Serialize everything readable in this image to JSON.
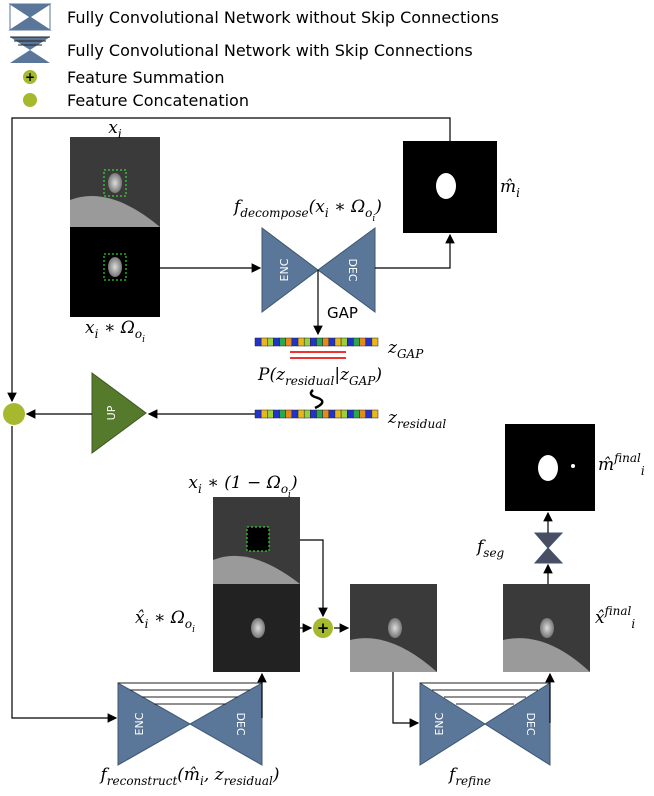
{
  "legend": [
    {
      "label": "Fully Convolutional Network without Skip Connections"
    },
    {
      "label": "Fully Convolutional Network with Skip Connections"
    },
    {
      "label": "Feature Summation",
      "symbol": "+"
    },
    {
      "label": "Feature Concatenation"
    }
  ],
  "blocks": {
    "enc": "ENC",
    "dec": "DEC",
    "up": "UP",
    "gap": "GAP"
  },
  "math_labels": [
    [
      {
        "text": "x"
      },
      {
        "text": "i",
        "script": "sub"
      }
    ],
    [
      {
        "text": "x"
      },
      {
        "text": "i",
        "script": "sub"
      },
      {
        "text": " ∗ Ω"
      },
      {
        "text": "o",
        "script": "sub"
      },
      {
        "text": "i",
        "script": "sub2"
      }
    ],
    [
      {
        "text": "f"
      },
      {
        "text": "decompose",
        "script": "sub"
      },
      {
        "text": "(x"
      },
      {
        "text": "i",
        "script": "sub"
      },
      {
        "text": " ∗ Ω"
      },
      {
        "text": "o",
        "script": "sub"
      },
      {
        "text": "i",
        "script": "sub2"
      },
      {
        "text": ")"
      }
    ],
    [
      {
        "text": "m̂"
      },
      {
        "text": "i",
        "script": "sub"
      }
    ],
    [
      {
        "text": "z"
      },
      {
        "text": "GAP",
        "script": "sub"
      }
    ],
    [
      {
        "text": "P(z"
      },
      {
        "text": "residual",
        "script": "sub"
      },
      {
        "text": "|z"
      },
      {
        "text": "GAP",
        "script": "sub"
      },
      {
        "text": ")"
      }
    ],
    [
      {
        "text": "z"
      },
      {
        "text": "residual",
        "script": "sub"
      }
    ],
    [
      {
        "text": "x"
      },
      {
        "text": "i",
        "script": "sub"
      },
      {
        "text": " ∗ (1 − Ω"
      },
      {
        "text": "o",
        "script": "sub"
      },
      {
        "text": "i",
        "script": "sub2"
      },
      {
        "text": ")"
      }
    ],
    [
      {
        "text": "x̂"
      },
      {
        "text": "i",
        "script": "sub"
      },
      {
        "text": " ∗ Ω"
      },
      {
        "text": "o",
        "script": "sub"
      },
      {
        "text": "i",
        "script": "sub2"
      }
    ],
    [
      {
        "text": "f"
      },
      {
        "text": "reconstruct",
        "script": "sub"
      },
      {
        "text": "(m̂"
      },
      {
        "text": "i",
        "script": "sub"
      },
      {
        "text": ", z"
      },
      {
        "text": "residual",
        "script": "sub"
      },
      {
        "text": ")"
      }
    ],
    [
      {
        "text": "f"
      },
      {
        "text": "refine",
        "script": "sub"
      }
    ],
    [
      {
        "text": "m̂"
      },
      {
        "text": "final",
        "script": "sup"
      },
      {
        "text": "i",
        "script": "sub"
      }
    ],
    [
      {
        "text": "f"
      },
      {
        "text": "seg",
        "script": "sub"
      }
    ],
    [
      {
        "text": "x̂"
      },
      {
        "text": "final",
        "script": "sup"
      },
      {
        "text": "i",
        "script": "sub"
      }
    ]
  ]
}
